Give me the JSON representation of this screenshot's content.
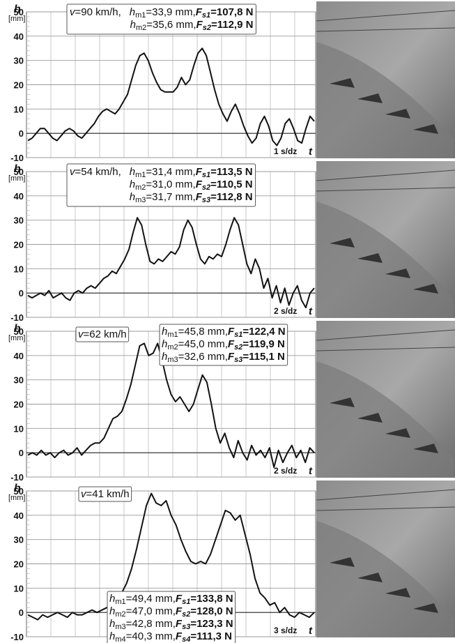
{
  "chart_data": [
    {
      "type": "line",
      "y_label": "h",
      "y_unit": "[mm]",
      "time_scale": "1 s/dz",
      "x_label": "t",
      "ylim": [
        -10,
        50
      ],
      "yticks": [
        -10,
        0,
        10,
        20,
        30,
        40,
        50
      ],
      "grid": true,
      "color": "#111111",
      "speed": {
        "v": "v",
        "v_text": "=90 km/h,"
      },
      "rows": [
        {
          "h": "h",
          "h_sub": "m1",
          "h_text": "=33,9 mm,",
          "F": "F",
          "F_sub": "s1",
          "F_text": "=107,8 N"
        },
        {
          "h": "h",
          "h_sub": "m2",
          "h_text": "=35,6 mm,",
          "F": "F",
          "F_sub": "s2",
          "F_text": "=112,9 N"
        }
      ],
      "values": [
        -3,
        -2,
        0,
        2,
        2,
        0,
        -2,
        -3,
        -1,
        1,
        2,
        1,
        -1,
        -2,
        0,
        2,
        4,
        7,
        9,
        10,
        9,
        8,
        10,
        13,
        16,
        22,
        28,
        32,
        33,
        30,
        25,
        21,
        18,
        17,
        17,
        17,
        19,
        23,
        20,
        22,
        28,
        33,
        35,
        32,
        25,
        18,
        12,
        8,
        5,
        9,
        12,
        8,
        3,
        -1,
        -4,
        -2,
        4,
        7,
        3,
        -3,
        -5,
        -2,
        4,
        6,
        2,
        -3,
        -4,
        2,
        7,
        5
      ]
    },
    {
      "type": "line",
      "y_label": "h",
      "y_unit": "[mm]",
      "time_scale": "2 s/dz",
      "x_label": "t",
      "ylim": [
        -10,
        50
      ],
      "yticks": [
        -10,
        0,
        10,
        20,
        30,
        40,
        50
      ],
      "grid": true,
      "color": "#111111",
      "speed": {
        "v": "v",
        "v_text": "=54 km/h,"
      },
      "rows": [
        {
          "h": "h",
          "h_sub": "m1",
          "h_text": "=31,4 mm,",
          "F": "F",
          "F_sub": "s1",
          "F_text": "=113,5 N"
        },
        {
          "h": "h",
          "h_sub": "m2",
          "h_text": "=31,0 mm,",
          "F": "F",
          "F_sub": "s2",
          "F_text": "=110,5 N"
        },
        {
          "h": "h",
          "h_sub": "m3",
          "h_text": "=31,7 mm,",
          "F": "F",
          "F_sub": "s3",
          "F_text": "=112,8 N"
        }
      ],
      "values": [
        -1,
        -2,
        -1,
        0,
        -1,
        1,
        -2,
        -1,
        0,
        -2,
        -3,
        0,
        1,
        0,
        2,
        3,
        2,
        4,
        6,
        7,
        9,
        8,
        11,
        14,
        18,
        25,
        31,
        28,
        20,
        13,
        12,
        14,
        13,
        15,
        17,
        16,
        19,
        26,
        30,
        27,
        20,
        14,
        12,
        15,
        14,
        16,
        15,
        20,
        26,
        31,
        28,
        20,
        12,
        8,
        14,
        10,
        2,
        6,
        -2,
        3,
        -4,
        2,
        -5,
        0,
        3,
        -3,
        -6,
        0,
        2
      ]
    },
    {
      "type": "line",
      "y_label": "h",
      "y_unit": "[mm]",
      "time_scale": "2 s/dz",
      "x_label": "t",
      "ylim": [
        -10,
        50
      ],
      "yticks": [
        -10,
        0,
        10,
        20,
        30,
        40,
        50
      ],
      "grid": true,
      "color": "#111111",
      "speed": {
        "v": "v",
        "v_text": "=62 km/h"
      },
      "rows": [
        {
          "h": "h",
          "h_sub": "m1",
          "h_text": "=45,8 mm,",
          "F": "F",
          "F_sub": "s1",
          "F_text": "=122,4 N"
        },
        {
          "h": "h",
          "h_sub": "m2",
          "h_text": "=45,0 mm,",
          "F": "F",
          "F_sub": "s2",
          "F_text": "=119,9 N"
        },
        {
          "h": "h",
          "h_sub": "m3",
          "h_text": "=32,6 mm,",
          "F": "F",
          "F_sub": "s3",
          "F_text": "=115,1 N"
        }
      ],
      "values": [
        -1,
        0,
        -1,
        1,
        -1,
        0,
        -2,
        0,
        1,
        -1,
        0,
        2,
        -1,
        1,
        3,
        4,
        4,
        6,
        10,
        14,
        15,
        17,
        22,
        28,
        36,
        44,
        45,
        40,
        41,
        45,
        38,
        30,
        24,
        21,
        23,
        20,
        17,
        20,
        26,
        32,
        29,
        20,
        10,
        4,
        8,
        2,
        -2,
        5,
        0,
        -3,
        3,
        -1,
        1,
        -2,
        2,
        -6,
        1,
        -4,
        0,
        3,
        -2,
        1,
        -4,
        2,
        0
      ]
    },
    {
      "type": "line",
      "y_label": "h",
      "y_unit": "[mm]",
      "time_scale": "3 s/dz",
      "x_label": "t",
      "ylim": [
        -10,
        50
      ],
      "yticks": [
        -10,
        0,
        10,
        20,
        30,
        40,
        50
      ],
      "grid": true,
      "color": "#111111",
      "speed": {
        "v": "v",
        "v_text": "=41 km/h"
      },
      "rows": [
        {
          "h": "h",
          "h_sub": "m1",
          "h_text": "=49,4 mm,",
          "F": "F",
          "F_sub": "s1",
          "F_text": "=133,8 N"
        },
        {
          "h": "h",
          "h_sub": "m2",
          "h_text": "=47,0 mm,",
          "F": "F",
          "F_sub": "s2",
          "F_text": "=128,0 N"
        },
        {
          "h": "h",
          "h_sub": "m3",
          "h_text": "=42,8 mm,",
          "F": "F",
          "F_sub": "s3",
          "F_text": "=123,3 N"
        },
        {
          "h": "h",
          "h_sub": "m4",
          "h_text": "=40,3 mm,",
          "F": "F",
          "F_sub": "s4",
          "F_text": "=111,3 N"
        }
      ],
      "values": [
        -1,
        -2,
        -3,
        -1,
        -2,
        -1,
        0,
        -1,
        -2,
        0,
        -1,
        -1,
        0,
        1,
        0,
        1,
        2,
        3,
        5,
        8,
        12,
        18,
        26,
        35,
        44,
        49,
        45,
        44,
        46,
        40,
        36,
        30,
        25,
        21,
        20,
        21,
        20,
        24,
        30,
        36,
        42,
        41,
        38,
        40,
        32,
        24,
        14,
        8,
        6,
        3,
        4,
        0,
        2,
        -1,
        -2,
        0,
        -1,
        -2,
        0
      ]
    }
  ]
}
